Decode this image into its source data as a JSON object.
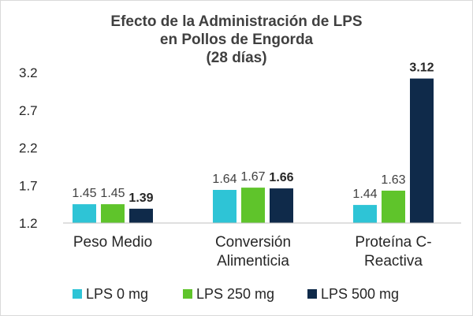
{
  "chart_data": {
    "type": "bar",
    "title": [
      "Efecto de la Administración de LPS",
      "en Pollos de Engorda",
      "(28 días)"
    ],
    "categories": [
      [
        "Peso Medio"
      ],
      [
        "Conversión",
        "Alimenticia"
      ],
      [
        "Proteína C-",
        "Reactiva"
      ]
    ],
    "series": [
      {
        "name": "LPS 0 mg",
        "color": "#2ec4d6",
        "values": [
          1.45,
          1.64,
          1.44
        ],
        "bold_labels": false
      },
      {
        "name": "LPS 250 mg",
        "color": "#5fc42b",
        "values": [
          1.45,
          1.67,
          1.63
        ],
        "bold_labels": false
      },
      {
        "name": "LPS 500 mg",
        "color": "#0f2a4a",
        "values": [
          1.39,
          1.66,
          3.12
        ],
        "bold_labels": true
      }
    ],
    "yticks": [
      "3.2",
      "2.7",
      "2.2",
      "1.7",
      "1.2"
    ],
    "ylim": [
      1.2,
      3.2
    ],
    "grid": false,
    "legend_position": "bottom"
  }
}
